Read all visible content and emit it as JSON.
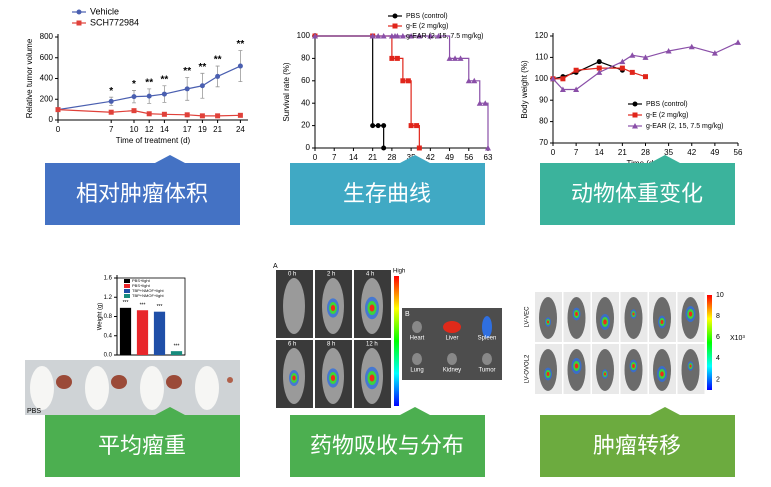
{
  "panels": [
    {
      "label": "相对肿瘤体积",
      "color": "#4472c4"
    },
    {
      "label": "生存曲线",
      "color": "#40a9c4"
    },
    {
      "label": "动物体重变化",
      "color": "#3bb39c"
    },
    {
      "label": "平均瘤重",
      "color": "#4caf50"
    },
    {
      "label": "药物吸收与分布",
      "color": "#4caf50"
    },
    {
      "label": "肿瘤转移",
      "color": "#6cab3f"
    }
  ],
  "chart_data": [
    {
      "type": "line",
      "xlabel": "Time of treatment (d)",
      "ylabel": "Relative tumor volume",
      "xlim": [
        0,
        25
      ],
      "xticks": [
        0,
        7,
        10,
        12,
        14,
        17,
        19,
        21,
        24
      ],
      "ylim": [
        0,
        800
      ],
      "yticks": [
        0,
        200,
        400,
        600,
        800
      ],
      "annotations": [
        "",
        "*",
        "*",
        "**",
        "**",
        "**",
        "**",
        "**",
        "**"
      ],
      "series": [
        {
          "name": "Vehicle",
          "color": "#4a5fb0",
          "marker": "circle",
          "x": [
            0,
            7,
            10,
            12,
            14,
            17,
            19,
            21,
            24
          ],
          "values": [
            100,
            180,
            225,
            230,
            250,
            300,
            330,
            420,
            520
          ],
          "errors": [
            0,
            40,
            60,
            70,
            80,
            110,
            120,
            100,
            150
          ]
        },
        {
          "name": "SCH772984",
          "color": "#e0413a",
          "marker": "square",
          "x": [
            0,
            7,
            10,
            12,
            14,
            17,
            19,
            21,
            24
          ],
          "values": [
            100,
            75,
            90,
            60,
            55,
            50,
            40,
            40,
            45
          ]
        }
      ]
    },
    {
      "type": "line",
      "step": true,
      "ylabel": "Survival rate (%)",
      "xlim": [
        0,
        63
      ],
      "xticks": [
        0,
        7,
        14,
        21,
        28,
        35,
        42,
        49,
        56,
        63
      ],
      "ylim": [
        0,
        100
      ],
      "yticks": [
        0,
        20,
        40,
        60,
        80,
        100
      ],
      "series": [
        {
          "name": "PBS (control)",
          "color": "#000000",
          "marker": "circle",
          "x": [
            0,
            21,
            23,
            25,
            25
          ],
          "values": [
            100,
            20,
            20,
            20,
            0
          ]
        },
        {
          "name": "g-E (2 mg/kg)",
          "color": "#e0251b",
          "marker": "square",
          "x": [
            0,
            21,
            28,
            30,
            32,
            34,
            35,
            37,
            38
          ],
          "values": [
            100,
            100,
            80,
            80,
            60,
            60,
            20,
            20,
            0
          ]
        },
        {
          "name": "g-EAR (2, 15, 7.5 mg/kg)",
          "color": "#8a4fa8",
          "marker": "triangle",
          "x": [
            0,
            21,
            23,
            25,
            28,
            30,
            32,
            35,
            38,
            42,
            45,
            49,
            51,
            53,
            56,
            58,
            60,
            62,
            63
          ],
          "values": [
            100,
            100,
            100,
            100,
            100,
            100,
            100,
            100,
            100,
            100,
            100,
            80,
            80,
            80,
            60,
            60,
            40,
            40,
            0
          ]
        }
      ]
    },
    {
      "type": "line",
      "xlabel": "Time (day)",
      "ylabel": "Body weight (%)",
      "xlim": [
        0,
        56
      ],
      "xticks": [
        0,
        7,
        14,
        21,
        28,
        35,
        42,
        49,
        56
      ],
      "ylim": [
        70,
        120
      ],
      "yticks": [
        70,
        80,
        90,
        100,
        110,
        120
      ],
      "series": [
        {
          "name": "PBS (control)",
          "color": "#000000",
          "marker": "circle",
          "x": [
            0,
            3,
            7,
            14,
            21
          ],
          "values": [
            100,
            101,
            103,
            108,
            104
          ]
        },
        {
          "name": "g-E (2 mg/kg)",
          "color": "#e0251b",
          "marker": "square",
          "x": [
            0,
            3,
            7,
            14,
            21,
            24,
            28
          ],
          "values": [
            100,
            100,
            104,
            105,
            105,
            103,
            101
          ]
        },
        {
          "name": "g-EAR (2, 15, 7.5 mg/kg)",
          "color": "#8a4fa8",
          "marker": "triangle",
          "x": [
            0,
            3,
            7,
            14,
            21,
            24,
            28,
            35,
            42,
            49,
            56
          ],
          "values": [
            100,
            95,
            95,
            103,
            108,
            111,
            110,
            113,
            115,
            112,
            117
          ]
        }
      ]
    },
    {
      "type": "bar",
      "ylabel": "Weight (g)",
      "categories": [
        "PBS+light",
        "PBS+light",
        "TBP+NMOF+light",
        "TBP+NMOF+light"
      ],
      "colors": [
        "#000000",
        "#e8262b",
        "#1f4fa8",
        "#178b7c"
      ],
      "values": [
        0.98,
        0.93,
        0.9,
        0.08
      ],
      "annotations": [
        "***",
        "***",
        "***",
        "***"
      ],
      "ylim": [
        0,
        1.6
      ],
      "yticks": [
        {
          "value": 0,
          "label": "0.0"
        },
        0.4,
        0.8,
        1.2,
        1.6
      ]
    }
  ],
  "imaging": {
    "tumor_photo": {
      "group": "PBS"
    },
    "distribution": {
      "panel_a": "A",
      "panel_b": "B",
      "scale_label": "High",
      "times": [
        "0 h",
        "2 h",
        "4 h",
        "6 h",
        "8 h",
        "12 h"
      ],
      "organs": [
        "Heart",
        "Liver",
        "Spleen",
        "Lung",
        "Kidney",
        "Tumor"
      ]
    },
    "metastasis": {
      "groups": [
        "LV-VEC",
        "LV-OVOL2"
      ],
      "colorbar_ticks": [
        2,
        4,
        6,
        8,
        10
      ],
      "colorbar_unit": "X10³"
    }
  }
}
